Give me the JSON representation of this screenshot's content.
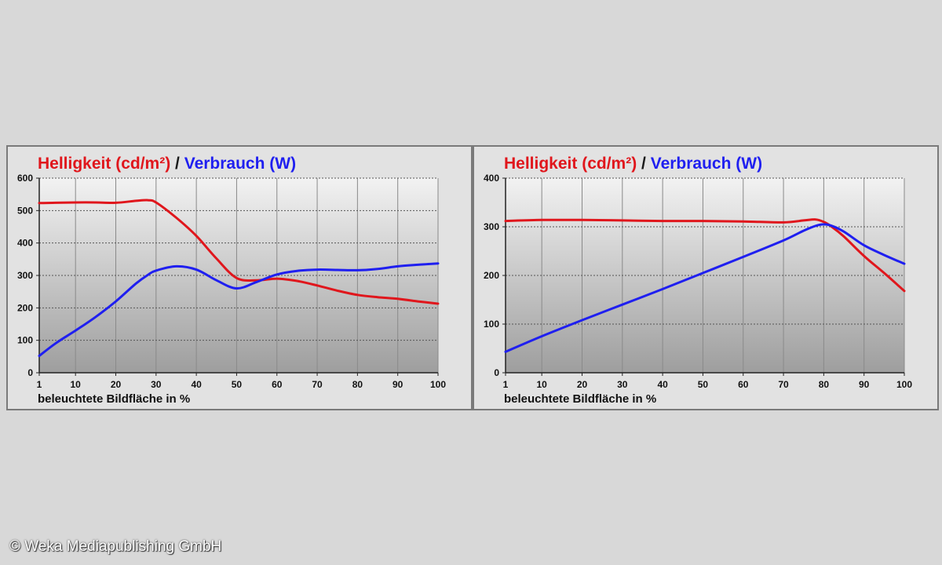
{
  "copyright": "© Weka Mediapublishing GmbH",
  "colors": {
    "brightness": "#e0161c",
    "consumption": "#1f1ff0",
    "background": "#d8d8d8",
    "panel": "#e2e2e2"
  },
  "chart_data": [
    {
      "type": "line",
      "title": {
        "brightness": "Helligkeit (cd/m²)",
        "separator": " / ",
        "consumption": "Verbrauch (W)"
      },
      "xlabel": "beleuchtete Bildfläche in %",
      "ylabel": "",
      "ylim": [
        0,
        600
      ],
      "yticks": [
        0,
        100,
        200,
        300,
        400,
        500,
        600
      ],
      "xticks": [
        1,
        10,
        20,
        30,
        40,
        50,
        60,
        70,
        80,
        90,
        100
      ],
      "grid": true,
      "x": [
        1,
        5,
        10,
        15,
        20,
        25,
        28,
        30,
        35,
        40,
        45,
        50,
        55,
        60,
        65,
        70,
        75,
        80,
        85,
        90,
        95,
        100
      ],
      "series": [
        {
          "key": "brightness",
          "values": [
            523,
            524,
            525,
            525,
            524,
            530,
            532,
            525,
            478,
            422,
            352,
            292,
            285,
            290,
            283,
            269,
            253,
            240,
            233,
            228,
            220,
            213
          ]
        },
        {
          "key": "consumption",
          "values": [
            52,
            90,
            130,
            172,
            220,
            275,
            302,
            315,
            328,
            318,
            285,
            260,
            280,
            303,
            314,
            318,
            317,
            316,
            320,
            328,
            333,
            337
          ]
        }
      ]
    },
    {
      "type": "line",
      "title": {
        "brightness": "Helligkeit (cd/m²)",
        "separator": " / ",
        "consumption": "Verbrauch (W)"
      },
      "xlabel": "beleuchtete Bildfläche in %",
      "ylabel": "",
      "ylim": [
        0,
        400
      ],
      "yticks": [
        0,
        100,
        200,
        300,
        400
      ],
      "xticks": [
        1,
        10,
        20,
        30,
        40,
        50,
        60,
        70,
        80,
        90,
        100
      ],
      "grid": true,
      "x": [
        1,
        10,
        20,
        30,
        40,
        50,
        60,
        70,
        75,
        78,
        80,
        82,
        85,
        90,
        95,
        100
      ],
      "series": [
        {
          "key": "brightness",
          "values": [
            312,
            314,
            314,
            313,
            312,
            312,
            311,
            309,
            313,
            315,
            310,
            300,
            280,
            240,
            205,
            168
          ]
        },
        {
          "key": "consumption",
          "values": [
            43,
            75,
            108,
            140,
            172,
            205,
            238,
            272,
            292,
            302,
            305,
            302,
            290,
            262,
            242,
            224
          ]
        }
      ]
    }
  ]
}
